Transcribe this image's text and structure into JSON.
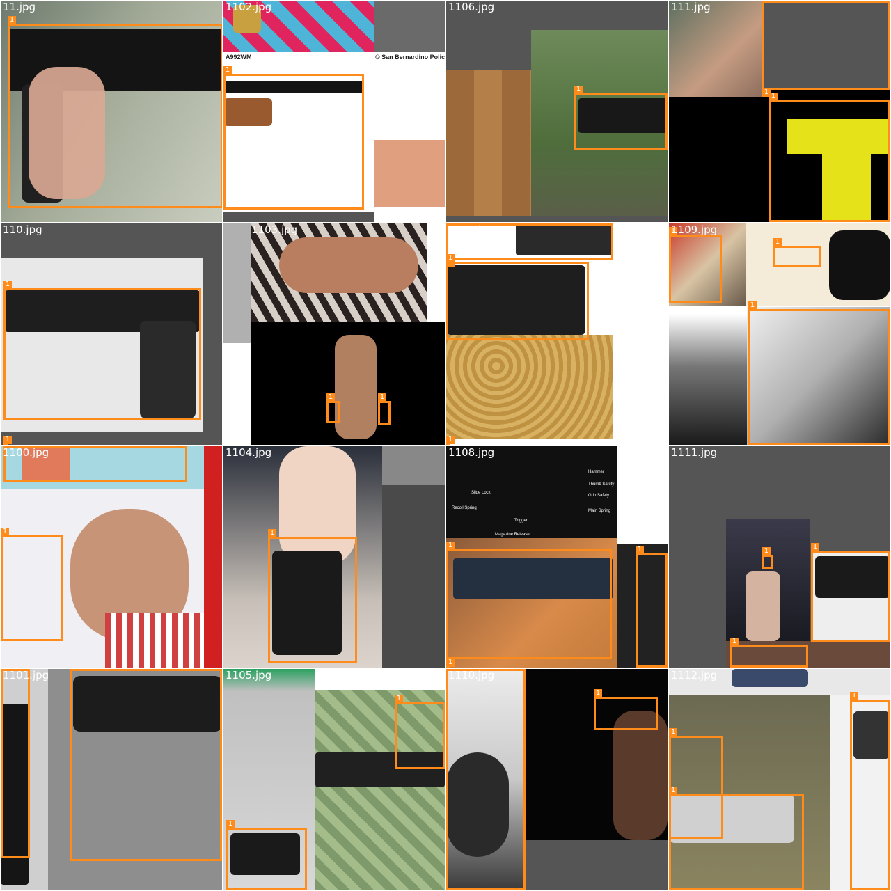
{
  "colors": {
    "box": "#ff8c1a",
    "label_text": "#ffffff",
    "letterbox": "#555555"
  },
  "tiles": [
    {
      "name": "11.jpg"
    },
    {
      "name": "1102.jpg",
      "captions": [
        "A992WM",
        "© San Bernardino Polic"
      ]
    },
    {
      "name": "1106.jpg"
    },
    {
      "name": "111.jpg"
    },
    {
      "name": "110.jpg"
    },
    {
      "name": "1103.jpg"
    },
    {
      "name": "1107.jpg"
    },
    {
      "name": "1109.jpg"
    },
    {
      "name": "1100.jpg"
    },
    {
      "name": "1104.jpg"
    },
    {
      "name": "1108.jpg",
      "annotations": [
        "Hammer",
        "Thumb Safety",
        "Slide Lock",
        "Grip Safety",
        "Recoil Spring",
        "Main Spring",
        "Trigger",
        "Magazine Release"
      ]
    },
    {
      "name": "1111.jpg"
    },
    {
      "name": "1101.jpg"
    },
    {
      "name": "1105.jpg"
    },
    {
      "name": "1110.jpg"
    },
    {
      "name": "1112.jpg"
    }
  ],
  "box_label": "1"
}
